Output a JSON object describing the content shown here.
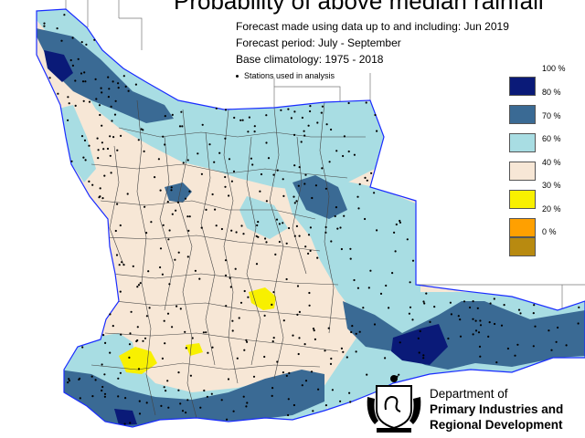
{
  "title": "Probability of above median rainfall",
  "info": {
    "forecast_made": "Forecast made using data up to and including: Jun 2019",
    "forecast_period": "Forecast period: July - September",
    "base_climatology": "Base climatology: 1975 - 2018",
    "stations_note": "Stations used in analysis"
  },
  "legend": {
    "items": [
      {
        "label": "100 %",
        "color": ""
      },
      {
        "label": "80 %",
        "color": "#0a1a78"
      },
      {
        "label": "70 %",
        "color": "#3a6a94"
      },
      {
        "label": "60 %",
        "color": "#a8dde3"
      },
      {
        "label": "40 %",
        "color": "#f7e7d6"
      },
      {
        "label": "30 %",
        "color": "#f8f000"
      },
      {
        "label": "20 %",
        "color": "#ffa000"
      },
      {
        "label": "0 %",
        "color": "#b88a10"
      }
    ]
  },
  "department": {
    "line1": "Department of",
    "line2": "Primary Industries and",
    "line3": "Regional Development"
  },
  "colors": {
    "coast": "#1a2cff",
    "boundary": "#333333",
    "station": "#000000"
  }
}
